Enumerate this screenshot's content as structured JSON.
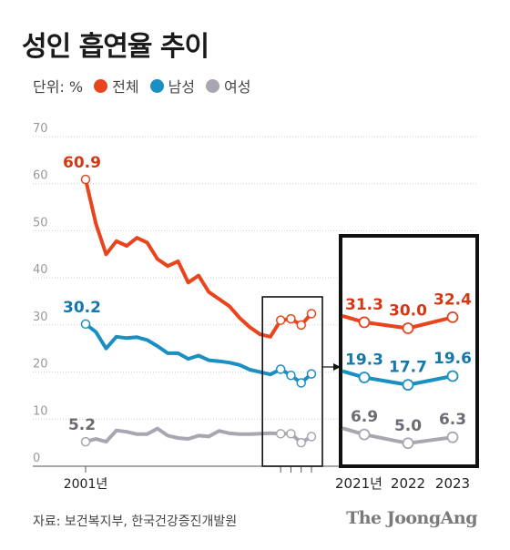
{
  "title": "성인 흡연율 추이",
  "legend": {
    "unit": "단위: %",
    "items": [
      {
        "label": "전체",
        "color": "#e8441e"
      },
      {
        "label": "남성",
        "color": "#1b8fc2"
      },
      {
        "label": "여성",
        "color": "#a9a6b1"
      }
    ]
  },
  "chart_data": {
    "type": "line",
    "title": "성인 흡연율 추이",
    "ylabel": "단위: %",
    "ylim": [
      0,
      70
    ],
    "yticks": [
      "0",
      "10",
      "20",
      "30",
      "40",
      "50",
      "60",
      "70"
    ],
    "x": [
      2001,
      2002,
      2003,
      2004,
      2005,
      2006,
      2007,
      2008,
      2009,
      2010,
      2011,
      2012,
      2013,
      2014,
      2015,
      2016,
      2017,
      2018,
      2019,
      2020,
      2021,
      2022,
      2023
    ],
    "xticks_main": [
      "2001년"
    ],
    "series": [
      {
        "name": "전체",
        "color": "#e8441e",
        "values": [
          60.9,
          51.5,
          45.0,
          47.8,
          46.8,
          48.5,
          47.5,
          44.0,
          42.5,
          43.5,
          39.0,
          40.5,
          37.0,
          35.5,
          34.0,
          31.5,
          29.5,
          28.0,
          27.5,
          31.0,
          31.3,
          30.0,
          32.4
        ]
      },
      {
        "name": "남성",
        "color": "#1b8fc2",
        "values": [
          30.2,
          28.5,
          25.0,
          27.5,
          27.2,
          27.4,
          26.8,
          25.5,
          24.0,
          24.0,
          22.8,
          23.5,
          22.5,
          22.3,
          22.0,
          21.5,
          20.5,
          20.0,
          19.5,
          20.6,
          19.3,
          17.7,
          19.6
        ]
      },
      {
        "name": "여성",
        "color": "#a9a6b1",
        "values": [
          5.2,
          5.8,
          5.2,
          7.6,
          7.3,
          6.8,
          6.8,
          8.0,
          6.5,
          6.0,
          5.8,
          6.5,
          6.3,
          7.5,
          7.0,
          6.8,
          6.8,
          6.9,
          7.0,
          6.9,
          6.9,
          5.0,
          6.3
        ]
      }
    ],
    "data_labels": [
      {
        "series": 0,
        "index": 0,
        "text": "60.9"
      },
      {
        "series": 1,
        "index": 0,
        "text": "30.2"
      },
      {
        "series": 2,
        "index": 0,
        "text": "5.2"
      }
    ],
    "inset": {
      "x": [
        "2021년",
        "2022",
        "2023"
      ],
      "series": [
        {
          "name": "전체",
          "values": [
            31.3,
            30.0,
            32.4
          ],
          "labels": [
            "31.3",
            "30.0",
            "32.4"
          ]
        },
        {
          "name": "남성",
          "values": [
            19.3,
            17.7,
            19.6
          ],
          "labels": [
            "19.3",
            "17.7",
            "19.6"
          ]
        },
        {
          "name": "여성",
          "values": [
            6.9,
            5.0,
            6.3
          ],
          "labels": [
            "6.9",
            "5.0",
            "6.3"
          ]
        }
      ]
    }
  },
  "footer": {
    "source": "자료: 보건복지부, 한국건강증진개발원",
    "brand": "The JoongAng"
  }
}
